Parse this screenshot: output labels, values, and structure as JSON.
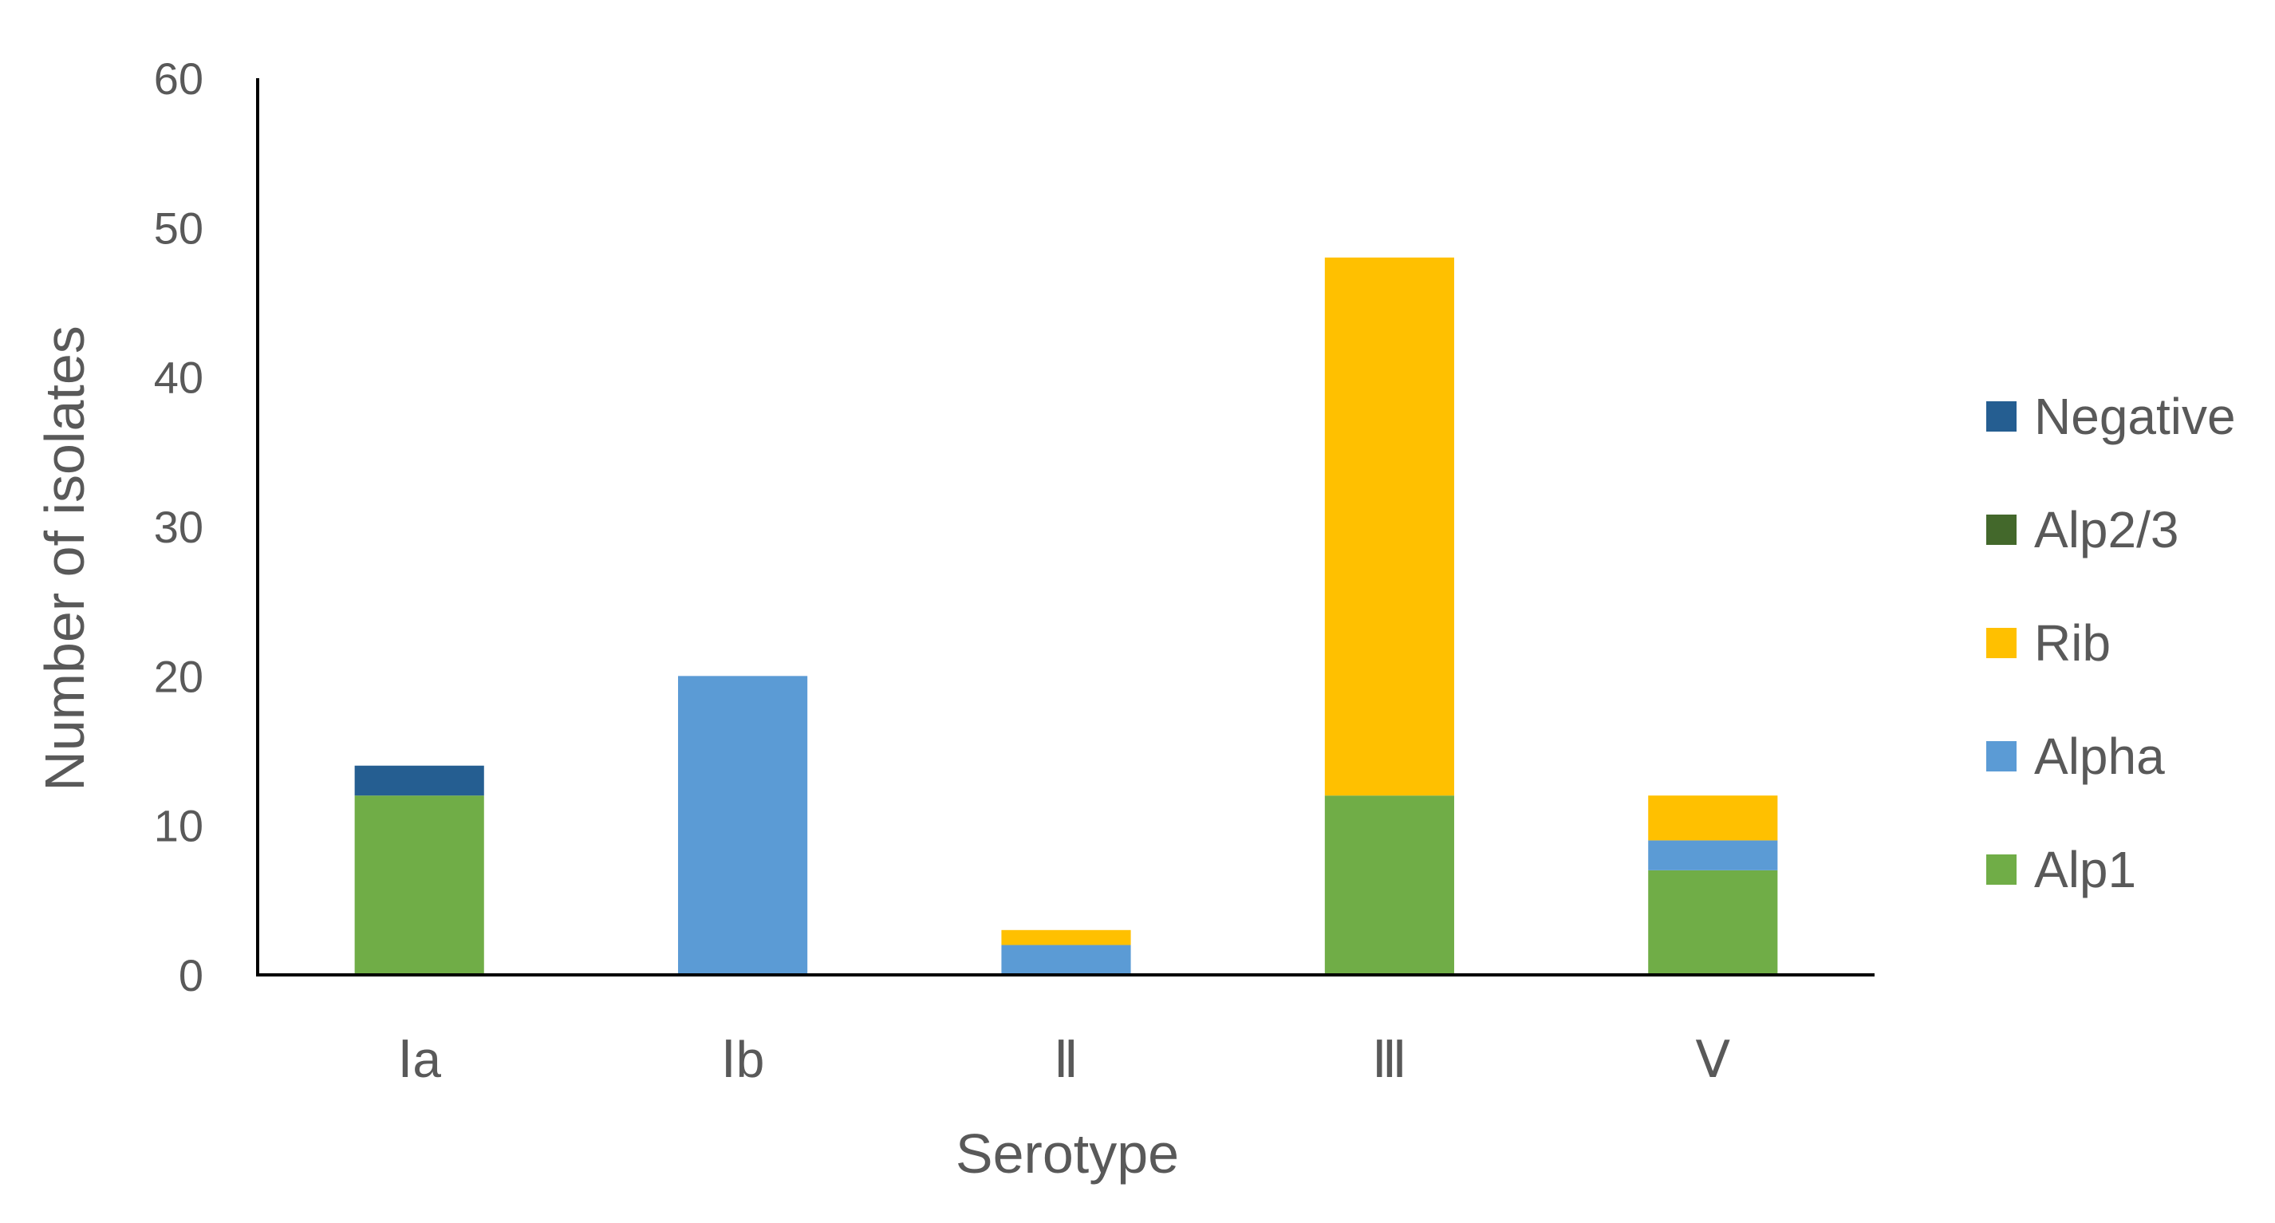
{
  "chart_data": {
    "type": "bar",
    "stacked": true,
    "title": "",
    "xlabel": "Serotype",
    "ylabel": "Number of isolates",
    "ylim": [
      0,
      60
    ],
    "yticks": [
      0,
      10,
      20,
      30,
      40,
      50,
      60
    ],
    "grid": false,
    "legend_position": "right",
    "categories": [
      "Ⅰa",
      "Ⅰb",
      "Ⅱ",
      "Ⅲ",
      "Ⅴ"
    ],
    "series": [
      {
        "name": "Alp1",
        "color": "#70AD47",
        "values": [
          12,
          0,
          0,
          12,
          7
        ]
      },
      {
        "name": "Alpha",
        "color": "#5B9BD5",
        "values": [
          0,
          20,
          2,
          0,
          2
        ]
      },
      {
        "name": "Rib",
        "color": "#FFC000",
        "values": [
          0,
          0,
          1,
          36,
          3
        ]
      },
      {
        "name": "Alp2/3",
        "color": "#43682B",
        "values": [
          0,
          0,
          0,
          0,
          0
        ]
      },
      {
        "name": "Negative",
        "color": "#255E91",
        "values": [
          2,
          0,
          0,
          0,
          0
        ]
      }
    ],
    "legend_order": [
      "Negative",
      "Alp2/3",
      "Rib",
      "Alpha",
      "Alp1"
    ]
  }
}
